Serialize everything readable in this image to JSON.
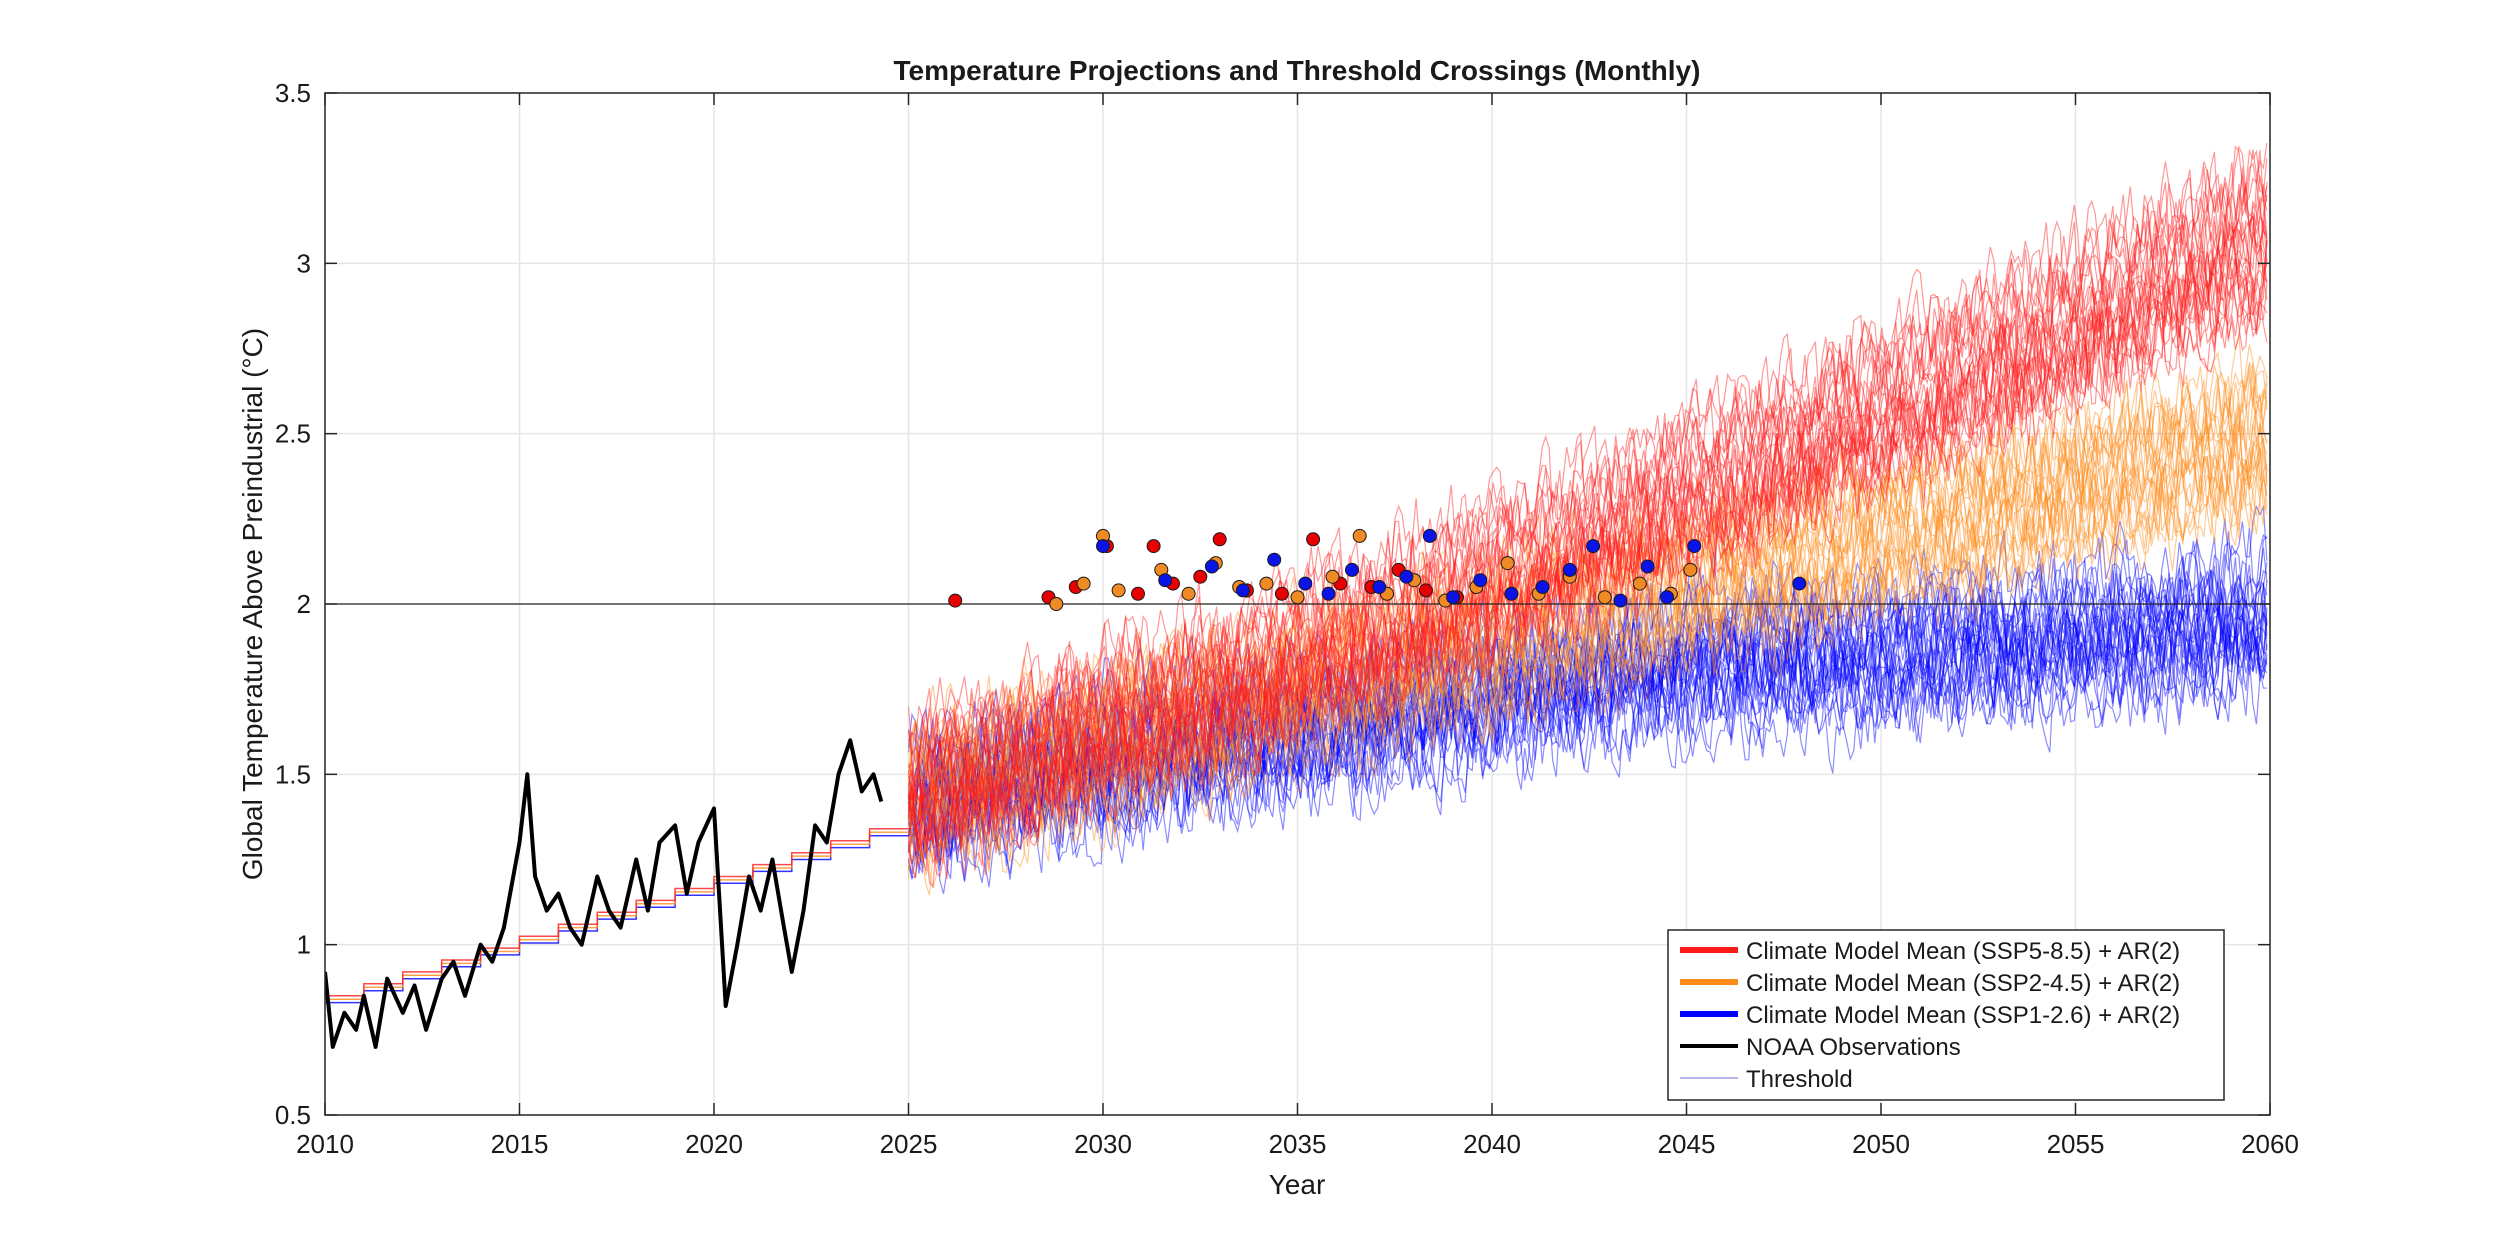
{
  "chart_data": {
    "type": "line",
    "title": "Temperature Projections and Threshold Crossings (Monthly)",
    "xlabel": "Year",
    "ylabel": "Global Temperature Above Preindustrial (°C)",
    "xlim": [
      2010,
      2060
    ],
    "ylim": [
      0.5,
      3.5
    ],
    "x_ticks": [
      2010,
      2015,
      2020,
      2025,
      2030,
      2035,
      2040,
      2045,
      2050,
      2055,
      2060
    ],
    "y_ticks": [
      0.5,
      1,
      1.5,
      2,
      2.5,
      3,
      3.5
    ],
    "grid": true,
    "legend_position": "bottom-right",
    "threshold": 2.0,
    "projection_start": 2025,
    "series": [
      {
        "name": "Climate Model Mean (SSP1-2.6) + AR(2)",
        "color": "#0000ff",
        "x": [
          2025,
          2030,
          2035,
          2040,
          2045,
          2050,
          2055,
          2060
        ],
        "band_low": [
          1.2,
          1.3,
          1.4,
          1.5,
          1.6,
          1.6,
          1.65,
          1.7
        ],
        "band_high": [
          1.65,
          1.8,
          1.9,
          2.0,
          2.1,
          2.15,
          2.2,
          2.25
        ]
      },
      {
        "name": "Climate Model Mean (SSP2-4.5) + AR(2)",
        "color": "#ff8c1a",
        "x": [
          2025,
          2030,
          2035,
          2040,
          2045,
          2050,
          2055,
          2060
        ],
        "band_low": [
          1.2,
          1.35,
          1.5,
          1.65,
          1.8,
          1.95,
          2.1,
          2.25
        ],
        "band_high": [
          1.65,
          1.85,
          2.0,
          2.15,
          2.3,
          2.45,
          2.6,
          2.75
        ]
      },
      {
        "name": "Climate Model Mean (SSP5-8.5) + AR(2)",
        "color": "#ff1a1a",
        "x": [
          2025,
          2030,
          2035,
          2040,
          2045,
          2050,
          2055,
          2060
        ],
        "band_low": [
          1.2,
          1.4,
          1.6,
          1.8,
          2.05,
          2.3,
          2.55,
          2.8
        ],
        "band_high": [
          1.7,
          1.9,
          2.1,
          2.35,
          2.6,
          2.85,
          3.1,
          3.4
        ]
      },
      {
        "name": "NOAA Observations",
        "color": "#000000",
        "x": [
          2010.0,
          2010.2,
          2010.5,
          2010.8,
          2011.0,
          2011.3,
          2011.6,
          2012.0,
          2012.3,
          2012.6,
          2013.0,
          2013.3,
          2013.6,
          2014.0,
          2014.3,
          2014.6,
          2015.0,
          2015.2,
          2015.4,
          2015.7,
          2016.0,
          2016.3,
          2016.6,
          2017.0,
          2017.3,
          2017.6,
          2018.0,
          2018.3,
          2018.6,
          2019.0,
          2019.3,
          2019.6,
          2020.0,
          2020.3,
          2020.6,
          2020.9,
          2021.2,
          2021.5,
          2021.8,
          2022.0,
          2022.3,
          2022.6,
          2022.9,
          2023.2,
          2023.5,
          2023.8,
          2024.1,
          2024.3
        ],
        "y": [
          0.92,
          0.7,
          0.8,
          0.75,
          0.85,
          0.7,
          0.9,
          0.8,
          0.88,
          0.75,
          0.9,
          0.95,
          0.85,
          1.0,
          0.95,
          1.05,
          1.3,
          1.5,
          1.2,
          1.1,
          1.15,
          1.05,
          1.0,
          1.2,
          1.1,
          1.05,
          1.25,
          1.1,
          1.3,
          1.35,
          1.15,
          1.3,
          1.4,
          0.82,
          1.0,
          1.2,
          1.1,
          1.25,
          1.05,
          0.92,
          1.1,
          1.35,
          1.3,
          1.5,
          1.6,
          1.45,
          1.5,
          1.42
        ]
      },
      {
        "name": "Threshold",
        "color": "#000000"
      }
    ],
    "crossing_points": [
      {
        "series": "SSP5-8.5",
        "color": "#e80000",
        "x": [
          2026.2,
          2028.6,
          2029.3,
          2030.1,
          2030.9,
          2031.3,
          2031.8,
          2032.5,
          2033.0,
          2033.7,
          2034.6,
          2035.4,
          2036.1,
          2036.9,
          2037.6,
          2038.3,
          2039.1
        ],
        "y": [
          2.01,
          2.02,
          2.05,
          2.17,
          2.03,
          2.17,
          2.06,
          2.08,
          2.19,
          2.04,
          2.03,
          2.19,
          2.06,
          2.05,
          2.1,
          2.04,
          2.02
        ]
      },
      {
        "series": "SSP2-4.5",
        "color": "#f08a24",
        "x": [
          2028.8,
          2029.5,
          2030.0,
          2030.4,
          2031.5,
          2032.2,
          2032.9,
          2033.5,
          2034.2,
          2035.0,
          2035.9,
          2036.6,
          2037.3,
          2038.0,
          2038.8,
          2039.6,
          2040.4,
          2041.2,
          2042.0,
          2042.9,
          2043.8,
          2044.6,
          2045.1
        ],
        "y": [
          2.0,
          2.06,
          2.2,
          2.04,
          2.1,
          2.03,
          2.12,
          2.05,
          2.06,
          2.02,
          2.08,
          2.2,
          2.03,
          2.07,
          2.01,
          2.05,
          2.12,
          2.03,
          2.08,
          2.02,
          2.06,
          2.03,
          2.1
        ]
      },
      {
        "series": "SSP1-2.6",
        "color": "#0a14e6",
        "x": [
          2030.0,
          2031.6,
          2032.8,
          2033.6,
          2034.4,
          2035.2,
          2035.8,
          2036.4,
          2037.1,
          2037.8,
          2038.4,
          2039.0,
          2039.7,
          2040.5,
          2041.3,
          2042.0,
          2042.6,
          2043.3,
          2044.0,
          2044.5,
          2045.2,
          2047.9
        ],
        "y": [
          2.17,
          2.07,
          2.11,
          2.04,
          2.13,
          2.06,
          2.03,
          2.1,
          2.05,
          2.08,
          2.2,
          2.02,
          2.07,
          2.03,
          2.05,
          2.1,
          2.17,
          2.01,
          2.11,
          2.02,
          2.17,
          2.06
        ]
      }
    ]
  }
}
